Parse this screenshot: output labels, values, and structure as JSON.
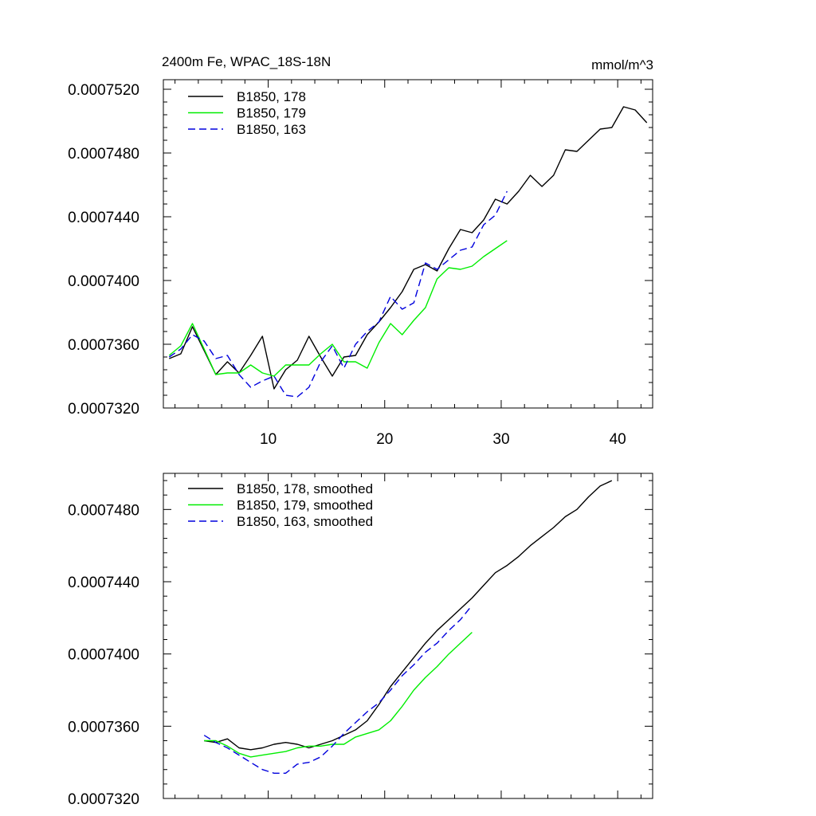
{
  "chart_data": [
    {
      "type": "line",
      "title_left": "2400m Fe, WPAC_18S-18N",
      "title_right": "mmol/m^3",
      "xlim": [
        1,
        43
      ],
      "ylim": [
        0.000732,
        0.0007526
      ],
      "y_ticks": [
        0.000732,
        0.000736,
        0.00074,
        0.000744,
        0.000748,
        0.000752
      ],
      "y_tick_labels": [
        "0.0007320",
        "0.0007360",
        "0.0007400",
        "0.0007440",
        "0.0007480",
        "0.0007520"
      ],
      "x_ticks": [
        10,
        20,
        30,
        40
      ],
      "x_tick_labels": [
        "10",
        "20",
        "30",
        "40"
      ],
      "legend_position": "top-left",
      "series": [
        {
          "name": "B1850, 178",
          "color": "#000000",
          "dash": "solid",
          "x": [
            1.5,
            2.5,
            3.5,
            4.5,
            5.5,
            6.5,
            7.5,
            8.5,
            9.5,
            10.5,
            11.5,
            12.5,
            13.5,
            14.5,
            15.5,
            16.5,
            17.5,
            18.5,
            19.5,
            20.5,
            21.5,
            22.5,
            23.5,
            24.5,
            25.5,
            26.5,
            27.5,
            28.5,
            29.5,
            30.5,
            31.5,
            32.5,
            33.5,
            34.5,
            35.5,
            36.5,
            37.5,
            38.5,
            39.5,
            40.5,
            41.5,
            42.5
          ],
          "values": [
            0.0007351,
            0.0007354,
            0.0007371,
            0.0007356,
            0.0007341,
            0.0007349,
            0.0007342,
            0.0007353,
            0.0007365,
            0.0007332,
            0.0007344,
            0.000735,
            0.0007365,
            0.0007352,
            0.000734,
            0.0007352,
            0.0007353,
            0.0007366,
            0.0007374,
            0.0007383,
            0.0007393,
            0.0007407,
            0.000741,
            0.0007406,
            0.000742,
            0.0007432,
            0.000743,
            0.0007438,
            0.0007451,
            0.0007448,
            0.0007456,
            0.0007466,
            0.0007459,
            0.0007466,
            0.0007482,
            0.0007481,
            0.0007488,
            0.0007495,
            0.0007496,
            0.0007509,
            0.0007507,
            0.0007499
          ]
        },
        {
          "name": "B1850, 179",
          "color": "#00ee00",
          "dash": "solid",
          "x": [
            1.5,
            2.5,
            3.5,
            4.5,
            5.5,
            6.5,
            7.5,
            8.5,
            9.5,
            10.5,
            11.5,
            12.5,
            13.5,
            14.5,
            15.5,
            16.5,
            17.5,
            18.5,
            19.5,
            20.5,
            21.5,
            22.5,
            23.5,
            24.5,
            25.5,
            26.5,
            27.5,
            28.5,
            29.5,
            30.5
          ],
          "values": [
            0.0007353,
            0.0007359,
            0.0007373,
            0.0007357,
            0.0007341,
            0.0007342,
            0.0007342,
            0.0007347,
            0.0007342,
            0.000734,
            0.0007347,
            0.0007347,
            0.0007347,
            0.0007354,
            0.000736,
            0.0007349,
            0.0007349,
            0.0007345,
            0.0007361,
            0.0007373,
            0.0007366,
            0.0007375,
            0.0007383,
            0.0007401,
            0.0007408,
            0.0007407,
            0.0007409,
            0.0007415,
            0.000742,
            0.0007425
          ]
        },
        {
          "name": "B1850, 163",
          "color": "#0000dd",
          "dash": "dashed",
          "x": [
            1.5,
            2.5,
            3.5,
            4.5,
            5.5,
            6.5,
            7.5,
            8.5,
            9.5,
            10.5,
            11.5,
            12.5,
            13.5,
            14.5,
            15.5,
            16.5,
            17.5,
            18.5,
            19.5,
            20.5,
            21.5,
            22.5,
            23.5,
            24.5,
            25.5,
            26.5,
            27.5,
            28.5,
            29.5,
            30.5
          ],
          "values": [
            0.0007352,
            0.0007357,
            0.0007366,
            0.0007362,
            0.0007351,
            0.0007353,
            0.0007341,
            0.0007333,
            0.0007337,
            0.000734,
            0.0007328,
            0.0007327,
            0.0007333,
            0.0007349,
            0.0007359,
            0.0007345,
            0.000736,
            0.0007368,
            0.0007374,
            0.000739,
            0.0007382,
            0.0007386,
            0.0007411,
            0.0007407,
            0.0007413,
            0.0007419,
            0.0007421,
            0.0007435,
            0.0007441,
            0.0007456
          ]
        }
      ]
    },
    {
      "type": "line",
      "xlim": [
        1,
        43
      ],
      "ylim": [
        0.000732,
        0.00075
      ],
      "y_ticks": [
        0.000732,
        0.000736,
        0.00074,
        0.000744,
        0.000748
      ],
      "y_tick_labels": [
        "0.0007320",
        "0.0007360",
        "0.0007400",
        "0.0007440",
        "0.0007480"
      ],
      "x_ticks": [
        10,
        20,
        30,
        40
      ],
      "legend_position": "top-left",
      "series": [
        {
          "name": "B1850, 178, smoothed",
          "color": "#000000",
          "dash": "solid",
          "x": [
            4.5,
            5.5,
            6.5,
            7.5,
            8.5,
            9.5,
            10.5,
            11.5,
            12.5,
            13.5,
            14.5,
            15.5,
            16.5,
            17.5,
            18.5,
            19.5,
            20.5,
            21.5,
            22.5,
            23.5,
            24.5,
            25.5,
            26.5,
            27.5,
            28.5,
            29.5,
            30.5,
            31.5,
            32.5,
            33.5,
            34.5,
            35.5,
            36.5,
            37.5,
            38.5,
            39.5
          ],
          "values": [
            0.0007352,
            0.0007351,
            0.0007353,
            0.0007348,
            0.0007347,
            0.0007348,
            0.000735,
            0.0007351,
            0.000735,
            0.0007348,
            0.000735,
            0.0007352,
            0.0007355,
            0.0007358,
            0.0007363,
            0.0007372,
            0.0007382,
            0.000739,
            0.0007398,
            0.0007406,
            0.0007413,
            0.0007419,
            0.0007425,
            0.0007431,
            0.0007438,
            0.0007445,
            0.0007449,
            0.0007454,
            0.000746,
            0.0007465,
            0.000747,
            0.0007476,
            0.000748,
            0.0007487,
            0.0007493,
            0.0007496
          ]
        },
        {
          "name": "B1850, 179, smoothed",
          "color": "#00ee00",
          "dash": "solid",
          "x": [
            4.5,
            5.5,
            6.5,
            7.5,
            8.5,
            9.5,
            10.5,
            11.5,
            12.5,
            13.5,
            14.5,
            15.5,
            16.5,
            17.5,
            18.5,
            19.5,
            20.5,
            21.5,
            22.5,
            23.5,
            24.5,
            25.5,
            26.5,
            27.5
          ],
          "values": [
            0.0007352,
            0.0007352,
            0.0007349,
            0.0007345,
            0.0007343,
            0.0007344,
            0.0007345,
            0.0007346,
            0.0007348,
            0.0007349,
            0.0007349,
            0.000735,
            0.000735,
            0.0007354,
            0.0007356,
            0.0007358,
            0.0007363,
            0.0007371,
            0.000738,
            0.0007387,
            0.0007393,
            0.00074,
            0.0007406,
            0.0007412
          ]
        },
        {
          "name": "B1850, 163, smoothed",
          "color": "#0000dd",
          "dash": "dashed",
          "x": [
            4.5,
            5.5,
            6.5,
            7.5,
            8.5,
            9.5,
            10.5,
            11.5,
            12.5,
            13.5,
            14.5,
            15.5,
            16.5,
            17.5,
            18.5,
            19.5,
            20.5,
            21.5,
            22.5,
            23.5,
            24.5,
            25.5,
            26.5,
            27.5
          ],
          "values": [
            0.0007355,
            0.0007351,
            0.0007348,
            0.0007344,
            0.000734,
            0.0007336,
            0.0007334,
            0.0007334,
            0.0007339,
            0.000734,
            0.0007343,
            0.0007349,
            0.0007356,
            0.0007362,
            0.0007368,
            0.0007373,
            0.000738,
            0.0007388,
            0.0007394,
            0.0007401,
            0.0007406,
            0.0007413,
            0.0007419,
            0.0007427
          ]
        }
      ]
    }
  ]
}
